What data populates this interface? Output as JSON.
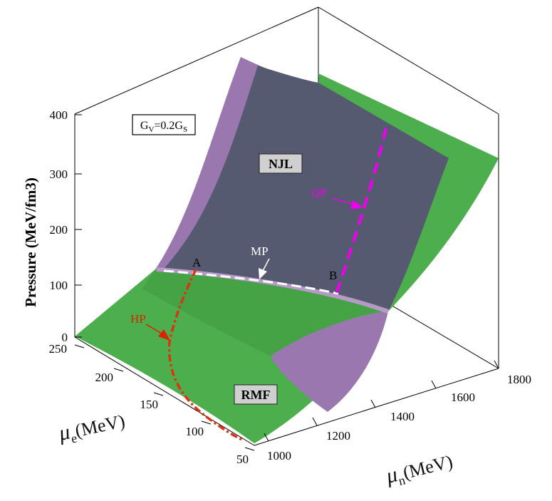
{
  "chart_data": {
    "type": "surface3d",
    "axes": {
      "x": {
        "label_symbol": "μ",
        "label_sub": "n",
        "label_unit": "(MeV)",
        "ticks": [
          "1000",
          "1200",
          "1400",
          "1600",
          "1800"
        ],
        "range": [
          950,
          1800
        ]
      },
      "y": {
        "label_symbol": "μ",
        "label_sub": "e",
        "label_unit": "(MeV)",
        "ticks": [
          "250",
          "200",
          "150",
          "100",
          "50"
        ],
        "range": [
          50,
          250
        ]
      },
      "z": {
        "label": "Pressure (MeV/fm3)",
        "ticks": [
          "0",
          "100",
          "200",
          "300",
          "400"
        ],
        "range": [
          0,
          400
        ]
      }
    },
    "parameter_box": {
      "main": "G",
      "sub1": "V",
      "mid": "=0.2G",
      "sub2": "S"
    },
    "surfaces": [
      {
        "name": "NJL",
        "color": "#9b77b0"
      },
      {
        "name": "RMF",
        "color": "#4cae4c"
      }
    ],
    "annotations": [
      {
        "text": "A",
        "color": "#000000"
      },
      {
        "text": "B",
        "color": "#000000"
      },
      {
        "text": "MP",
        "color": "#ffffff"
      },
      {
        "text": "HP",
        "color": "#dd2200"
      },
      {
        "text": "QP",
        "color": "#ee00ee"
      }
    ],
    "curves": [
      {
        "name": "HP",
        "style": "dash-dot",
        "color": "#dd3311"
      },
      {
        "name": "MP",
        "style": "dashed",
        "color": "#ffffff"
      },
      {
        "name": "QP",
        "style": "dashed",
        "color": "#ee00ee"
      }
    ],
    "grid": false
  }
}
